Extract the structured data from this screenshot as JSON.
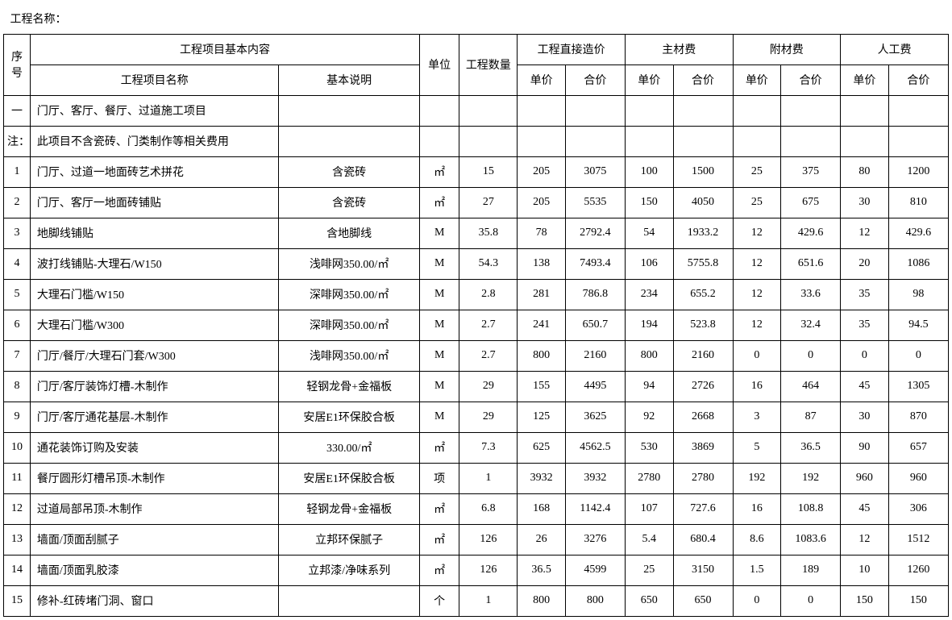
{
  "title": "工程名称：",
  "header": {
    "seq": "序号",
    "content_group": "工程项目基本内容",
    "name": "工程项目名称",
    "desc": "基本说明",
    "unit": "单位",
    "qty": "工程数量",
    "direct_cost": "工程直接造价",
    "main_material": "主材费",
    "aux_material": "附材费",
    "labor": "人工费",
    "unit_price": "单价",
    "total_price": "合价"
  },
  "rows": [
    {
      "seq": "一",
      "name": "门厅、客厅、餐厅、过道施工项目",
      "desc": "",
      "unit": "",
      "qty": "",
      "dp": "",
      "dt": "",
      "mp": "",
      "mt": "",
      "ap": "",
      "at": "",
      "lp": "",
      "lt": ""
    },
    {
      "seq": "注：",
      "name": "此项目不含瓷砖、门类制作等相关费用",
      "desc": "",
      "unit": "",
      "qty": "",
      "dp": "",
      "dt": "",
      "mp": "",
      "mt": "",
      "ap": "",
      "at": "",
      "lp": "",
      "lt": ""
    },
    {
      "seq": "1",
      "name": "门厅、过道一地面砖艺术拼花",
      "desc": "含瓷砖",
      "unit": "㎡",
      "qty": "15",
      "dp": "205",
      "dt": "3075",
      "mp": "100",
      "mt": "1500",
      "ap": "25",
      "at": "375",
      "lp": "80",
      "lt": "1200"
    },
    {
      "seq": "2",
      "name": "门厅、客厅一地面砖铺贴",
      "desc": "含瓷砖",
      "unit": "㎡",
      "qty": "27",
      "dp": "205",
      "dt": "5535",
      "mp": "150",
      "mt": "4050",
      "ap": "25",
      "at": "675",
      "lp": "30",
      "lt": "810"
    },
    {
      "seq": "3",
      "name": "地脚线铺贴",
      "desc": "含地脚线",
      "unit": "M",
      "qty": "35.8",
      "dp": "78",
      "dt": "2792.4",
      "mp": "54",
      "mt": "1933.2",
      "ap": "12",
      "at": "429.6",
      "lp": "12",
      "lt": "429.6"
    },
    {
      "seq": "4",
      "name": "波打线铺贴-大理石/W150",
      "desc": "浅啡网350.00/㎡",
      "unit": "M",
      "qty": "54.3",
      "dp": "138",
      "dt": "7493.4",
      "mp": "106",
      "mt": "5755.8",
      "ap": "12",
      "at": "651.6",
      "lp": "20",
      "lt": "1086"
    },
    {
      "seq": "5",
      "name": "大理石门槛/W150",
      "desc": "深啡网350.00/㎡",
      "unit": "M",
      "qty": "2.8",
      "dp": "281",
      "dt": "786.8",
      "mp": "234",
      "mt": "655.2",
      "ap": "12",
      "at": "33.6",
      "lp": "35",
      "lt": "98"
    },
    {
      "seq": "6",
      "name": "大理石门槛/W300",
      "desc": "深啡网350.00/㎡",
      "unit": "M",
      "qty": "2.7",
      "dp": "241",
      "dt": "650.7",
      "mp": "194",
      "mt": "523.8",
      "ap": "12",
      "at": "32.4",
      "lp": "35",
      "lt": "94.5"
    },
    {
      "seq": "7",
      "name": "门厅/餐厅/大理石门套/W300",
      "desc": "浅啡网350.00/㎡",
      "unit": "M",
      "qty": "2.7",
      "dp": "800",
      "dt": "2160",
      "mp": "800",
      "mt": "2160",
      "ap": "0",
      "at": "0",
      "lp": "0",
      "lt": "0"
    },
    {
      "seq": "8",
      "name": "门厅/客厅装饰灯槽-木制作",
      "desc": "轻钢龙骨+金福板",
      "unit": "M",
      "qty": "29",
      "dp": "155",
      "dt": "4495",
      "mp": "94",
      "mt": "2726",
      "ap": "16",
      "at": "464",
      "lp": "45",
      "lt": "1305"
    },
    {
      "seq": "9",
      "name": "门厅/客厅通花基层-木制作",
      "desc": "安居E1环保胶合板",
      "unit": "M",
      "qty": "29",
      "dp": "125",
      "dt": "3625",
      "mp": "92",
      "mt": "2668",
      "ap": "3",
      "at": "87",
      "lp": "30",
      "lt": "870"
    },
    {
      "seq": "10",
      "name": "通花装饰订购及安装",
      "desc": "330.00/㎡",
      "unit": "㎡",
      "qty": "7.3",
      "dp": "625",
      "dt": "4562.5",
      "mp": "530",
      "mt": "3869",
      "ap": "5",
      "at": "36.5",
      "lp": "90",
      "lt": "657"
    },
    {
      "seq": "11",
      "name": "餐厅圆形灯槽吊顶-木制作",
      "desc": "安居E1环保胶合板",
      "unit": "项",
      "qty": "1",
      "dp": "3932",
      "dt": "3932",
      "mp": "2780",
      "mt": "2780",
      "ap": "192",
      "at": "192",
      "lp": "960",
      "lt": "960"
    },
    {
      "seq": "12",
      "name": "过道局部吊顶-木制作",
      "desc": "轻钢龙骨+金福板",
      "unit": "㎡",
      "qty": "6.8",
      "dp": "168",
      "dt": "1142.4",
      "mp": "107",
      "mt": "727.6",
      "ap": "16",
      "at": "108.8",
      "lp": "45",
      "lt": "306"
    },
    {
      "seq": "13",
      "name": "墙面/顶面刮腻子",
      "desc": "立邦环保腻子",
      "unit": "㎡",
      "qty": "126",
      "dp": "26",
      "dt": "3276",
      "mp": "5.4",
      "mt": "680.4",
      "ap": "8.6",
      "at": "1083.6",
      "lp": "12",
      "lt": "1512"
    },
    {
      "seq": "14",
      "name": "墙面/顶面乳胶漆",
      "desc": "立邦漆/净味系列",
      "unit": "㎡",
      "qty": "126",
      "dp": "36.5",
      "dt": "4599",
      "mp": "25",
      "mt": "3150",
      "ap": "1.5",
      "at": "189",
      "lp": "10",
      "lt": "1260"
    },
    {
      "seq": "15",
      "name": "修补-红砖堵门洞、窗口",
      "desc": "",
      "unit": "个",
      "qty": "1",
      "dp": "800",
      "dt": "800",
      "mp": "650",
      "mt": "650",
      "ap": "0",
      "at": "0",
      "lp": "150",
      "lt": "150"
    }
  ]
}
